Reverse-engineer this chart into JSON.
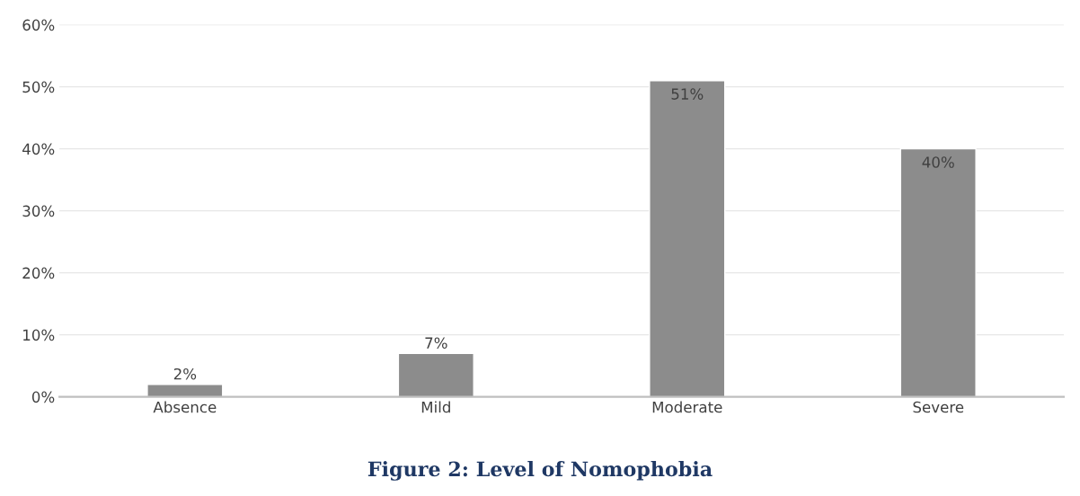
{
  "chart_data": {
    "type": "bar",
    "title": "Figure 2: Level of Nomophobia",
    "categories": [
      "Absence",
      "Mild",
      "Moderate",
      "Severe"
    ],
    "values": [
      2,
      7,
      51,
      40
    ],
    "color": "#8c8c8c",
    "value_labels": [
      "2%",
      "7%",
      "51%",
      "40%"
    ],
    "ylim": [
      0,
      60
    ],
    "yticks": [
      {
        "value": 0,
        "label": "0%"
      },
      {
        "value": 10,
        "label": "10%"
      },
      {
        "value": 20,
        "label": "20%"
      },
      {
        "value": 30,
        "label": "30%"
      },
      {
        "value": 40,
        "label": "40%"
      },
      {
        "value": 50,
        "label": "50%"
      },
      {
        "value": 60,
        "label": "60%"
      }
    ],
    "grid": "y"
  }
}
